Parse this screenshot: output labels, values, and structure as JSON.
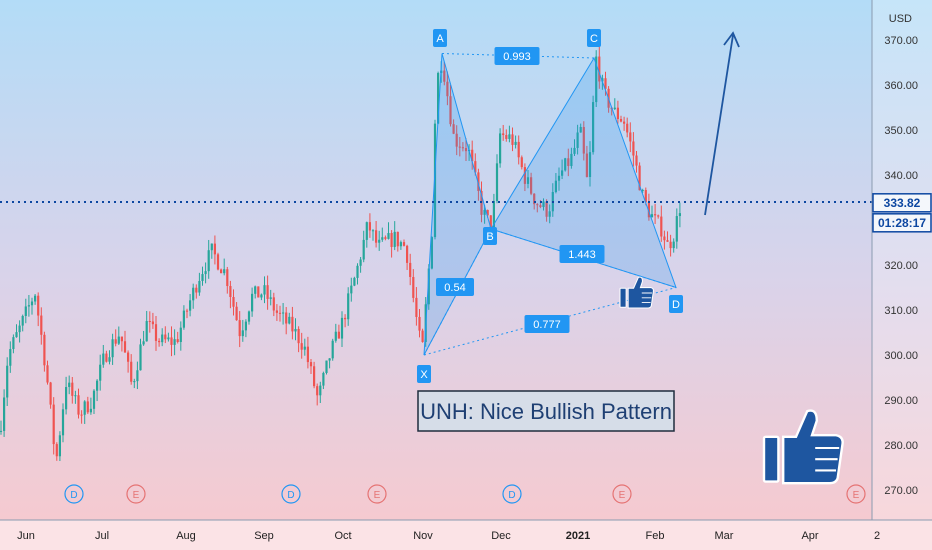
{
  "chart_data": {
    "type": "candlestick",
    "symbol": "UNH",
    "currency": "USD",
    "months": [
      "Jun",
      "Jul",
      "Aug",
      "Sep",
      "Oct",
      "Nov",
      "Dec",
      "2021",
      "Feb",
      "Mar",
      "Apr",
      "2"
    ],
    "y_ticks": [
      "370.00",
      "360.00",
      "350.00",
      "340.00",
      "330.00",
      "320.00",
      "310.00",
      "300.00",
      "290.00",
      "280.00",
      "270.00"
    ],
    "ylim": [
      265,
      375
    ],
    "last_price": "333.82",
    "countdown": "01:28:17",
    "harmonic_points": [
      {
        "label": "X",
        "value": 300
      },
      {
        "label": "A",
        "value": 367
      },
      {
        "label": "B",
        "value": 328
      },
      {
        "label": "C",
        "value": 366
      },
      {
        "label": "D",
        "value": 315
      }
    ],
    "ratios": [
      {
        "text": "0.993"
      },
      {
        "text": "0.54"
      },
      {
        "text": "1.443"
      },
      {
        "text": "0.777"
      }
    ],
    "events": [
      "D",
      "E",
      "D",
      "E",
      "D",
      "E",
      "E"
    ],
    "annotation": "UNH: Nice Bullish Pattern",
    "colors": {
      "up": "#26a69a",
      "down": "#ef5350",
      "pattern": "#2196f3",
      "label_bg": "#2196f3",
      "price_line": "#0d47a1",
      "thumbs": "#1e56a0"
    }
  }
}
